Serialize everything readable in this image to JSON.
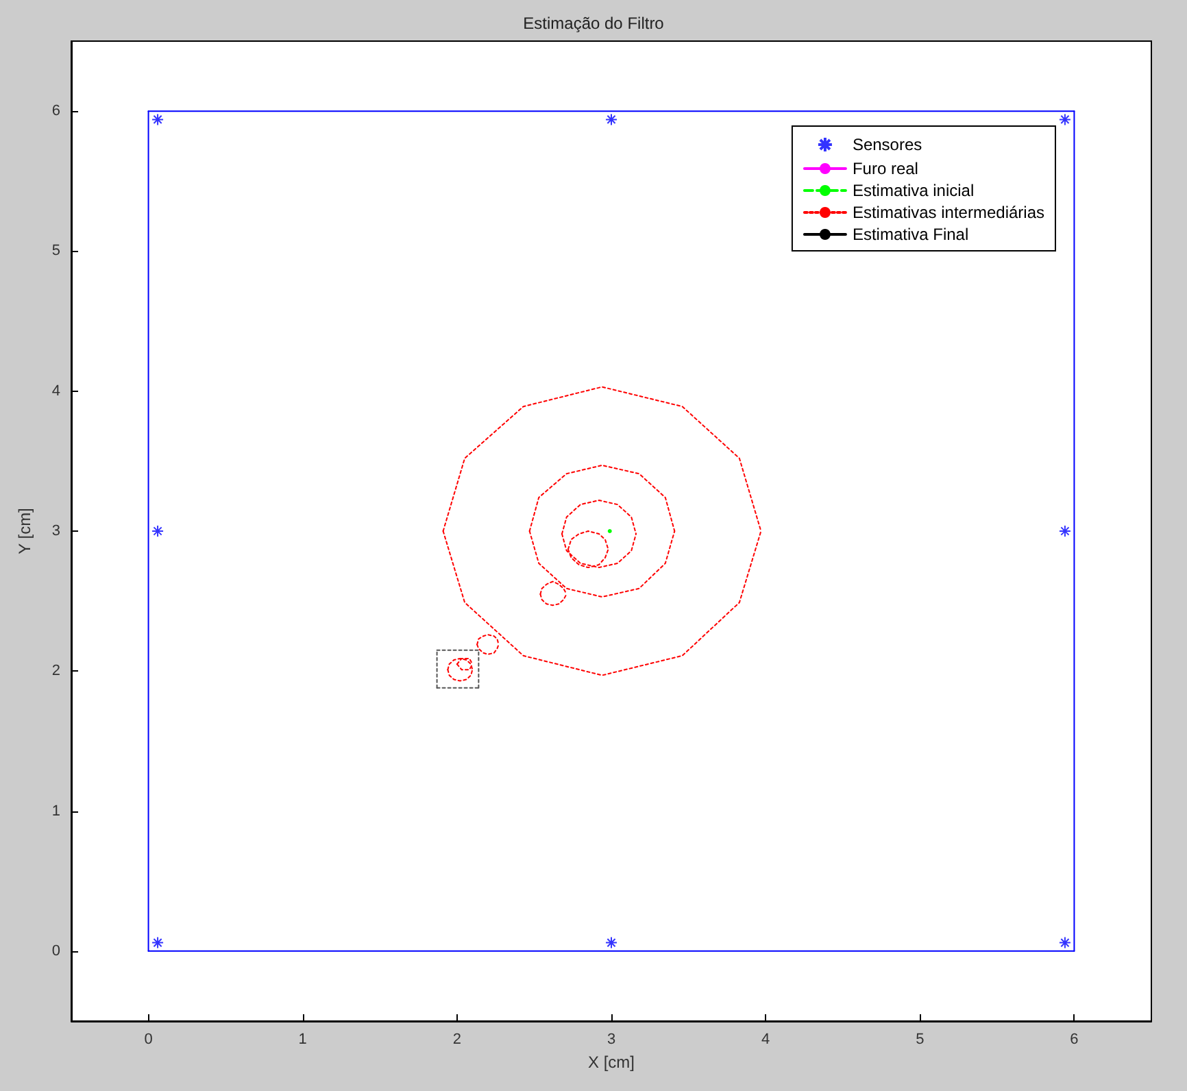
{
  "chart_data": {
    "type": "line",
    "title": "Estimação do Filtro",
    "xlabel": "X [cm]",
    "ylabel": "Y [cm]",
    "xlim": [
      -0.5,
      6.5
    ],
    "ylim": [
      -0.5,
      6.5
    ],
    "xticks": [
      0,
      1,
      2,
      3,
      4,
      5,
      6
    ],
    "yticks": [
      0,
      1,
      2,
      3,
      4,
      5,
      6
    ],
    "grid": false,
    "legend": "top right",
    "marker": "none",
    "series": [
      {
        "name": "Sensores",
        "type": "scatter",
        "marker": "cross",
        "color": "#0000ff",
        "x": [
          0.06,
          3,
          5.94,
          0.06,
          5.94,
          0.06,
          3,
          5.94
        ],
        "values": [
          0.06,
          0.06,
          0.06,
          3,
          3,
          5.94,
          5.94,
          5.94
        ]
      },
      {
        "name": "Furo real",
        "color": "#ff00ff",
        "line_style": "solid"
      },
      {
        "name": "Estimativa inicial",
        "color": "#00ff00",
        "line_style": "dashed",
        "marker": "circle",
        "x": [
          2.99
        ],
        "values": [
          3.0
        ]
      },
      {
        "name": "Estimativas intermediárias",
        "color": "#ff0000",
        "line_style": "dotted",
        "x": [
          1.91,
          2.05,
          2.43,
          2.94,
          3.46,
          3.83,
          3.97
        ],
        "values": [
          3.0,
          3.52,
          3.89,
          4.03,
          3.89,
          3.52,
          3.0
        ]
      },
      {
        "name": "Estimativa Final",
        "color": "#000000",
        "line_style": "solid"
      },
      {
        "color": "#ff0000",
        "line_style": "dotted",
        "x": [
          1.91,
          2.05,
          2.43,
          2.94,
          3.46,
          3.83,
          3.97
        ],
        "values": [
          3.0,
          2.49,
          2.11,
          1.97,
          2.11,
          2.49,
          3.0
        ]
      },
      {
        "color": "#ff0000",
        "line_style": "dotted",
        "x": [
          2.47,
          2.53,
          2.71,
          2.94,
          3.18,
          3.35,
          3.41
        ],
        "values": [
          3.0,
          3.24,
          3.41,
          3.47,
          3.41,
          3.24,
          3.0
        ]
      },
      {
        "color": "#ff0000",
        "line_style": "dotted",
        "x": [
          2.47,
          2.53,
          2.71,
          2.94,
          3.18,
          3.35,
          3.41
        ],
        "values": [
          3.0,
          2.77,
          2.59,
          2.53,
          2.59,
          2.77,
          3.0
        ]
      },
      {
        "color": "#ff0000",
        "line_style": "dotted",
        "x": [
          2.68,
          2.71,
          2.8,
          2.92,
          3.04,
          3.13,
          3.16
        ],
        "values": [
          2.98,
          3.1,
          3.19,
          3.22,
          3.19,
          3.1,
          2.98
        ]
      },
      {
        "color": "#ff0000",
        "line_style": "dotted",
        "x": [
          2.68,
          2.71,
          2.8,
          2.92,
          3.04,
          3.13,
          3.16
        ],
        "values": [
          2.98,
          2.86,
          2.77,
          2.74,
          2.77,
          2.86,
          2.98
        ]
      },
      {
        "color": "#ff0000",
        "line_style": "dotted",
        "x": [
          2.72,
          2.74,
          2.79,
          2.85,
          2.92,
          2.96,
          2.98
        ],
        "values": [
          2.87,
          2.94,
          2.98,
          3.0,
          2.98,
          2.94,
          2.87
        ]
      },
      {
        "color": "#ff0000",
        "line_style": "dotted",
        "x": [
          2.72,
          2.74,
          2.79,
          2.85,
          2.92,
          2.96,
          2.98
        ],
        "values": [
          2.87,
          2.81,
          2.76,
          2.74,
          2.76,
          2.81,
          2.87
        ]
      },
      {
        "color": "#ff0000",
        "line_style": "dotted",
        "x": [
          2.54,
          2.55,
          2.58,
          2.62,
          2.66,
          2.69,
          2.71
        ],
        "values": [
          2.55,
          2.59,
          2.62,
          2.64,
          2.62,
          2.59,
          2.55
        ]
      },
      {
        "color": "#ff0000",
        "line_style": "dotted",
        "x": [
          2.54,
          2.55,
          2.58,
          2.62,
          2.66,
          2.69,
          2.71
        ],
        "values": [
          2.55,
          2.51,
          2.48,
          2.47,
          2.48,
          2.51,
          2.55
        ]
      },
      {
        "color": "#ff0000",
        "line_style": "dotted",
        "x": [
          2.13,
          2.14,
          2.17,
          2.2,
          2.24,
          2.26,
          2.27
        ],
        "values": [
          2.19,
          2.23,
          2.25,
          2.26,
          2.25,
          2.23,
          2.19
        ]
      },
      {
        "color": "#ff0000",
        "line_style": "dotted",
        "x": [
          2.13,
          2.14,
          2.17,
          2.2,
          2.24,
          2.26,
          2.27
        ],
        "values": [
          2.19,
          2.16,
          2.13,
          2.12,
          2.13,
          2.16,
          2.19
        ]
      },
      {
        "color": "#ff0000",
        "line_style": "dotted",
        "x": [
          1.94,
          1.95,
          1.98,
          2.02,
          2.06,
          2.09,
          2.1
        ],
        "values": [
          2.01,
          2.05,
          2.08,
          2.09,
          2.08,
          2.05,
          2.01
        ]
      },
      {
        "color": "#ff0000",
        "line_style": "dotted",
        "x": [
          1.94,
          1.95,
          1.98,
          2.02,
          2.06,
          2.09,
          2.1
        ],
        "values": [
          2.01,
          1.97,
          1.94,
          1.93,
          1.94,
          1.97,
          2.01
        ]
      },
      {
        "color": "#ff0000",
        "line_style": "dotted",
        "x": [
          2.0,
          2.03,
          2.08,
          2.1
        ],
        "values": [
          2.05,
          2.09,
          2.09,
          2.05
        ]
      },
      {
        "color": "#ff0000",
        "line_style": "dotted",
        "x": [
          2.0,
          2.03,
          2.08,
          2.1
        ],
        "values": [
          2.05,
          2.01,
          2.01,
          2.05
        ]
      },
      {
        "color": "#555555",
        "line_style": "dotted",
        "x": [
          1.87,
          2.14
        ],
        "values": [
          1.88,
          1.88
        ]
      },
      {
        "color": "#555555",
        "line_style": "dotted",
        "x": [
          1.87,
          2.14
        ],
        "values": [
          2.15,
          2.15
        ]
      },
      {
        "color": "#555555",
        "line_style": "dotted",
        "x": [
          1.87,
          1.87
        ],
        "values": [
          1.88,
          2.15
        ]
      },
      {
        "color": "#555555",
        "line_style": "dotted",
        "x": [
          2.14,
          2.14
        ],
        "values": [
          1.88,
          2.15
        ]
      },
      {
        "color": "#0000ff",
        "line_style": "solid",
        "x": [
          0,
          6
        ],
        "values": [
          0,
          0
        ]
      },
      {
        "color": "#0000ff",
        "line_style": "solid",
        "x": [
          0,
          6
        ],
        "values": [
          6,
          6
        ]
      },
      {
        "color": "#0000ff",
        "line_style": "solid",
        "x": [
          0,
          0
        ],
        "values": [
          0,
          6
        ]
      },
      {
        "color": "#0000ff",
        "line_style": "solid",
        "x": [
          6,
          6
        ],
        "values": [
          0,
          6
        ]
      }
    ]
  }
}
